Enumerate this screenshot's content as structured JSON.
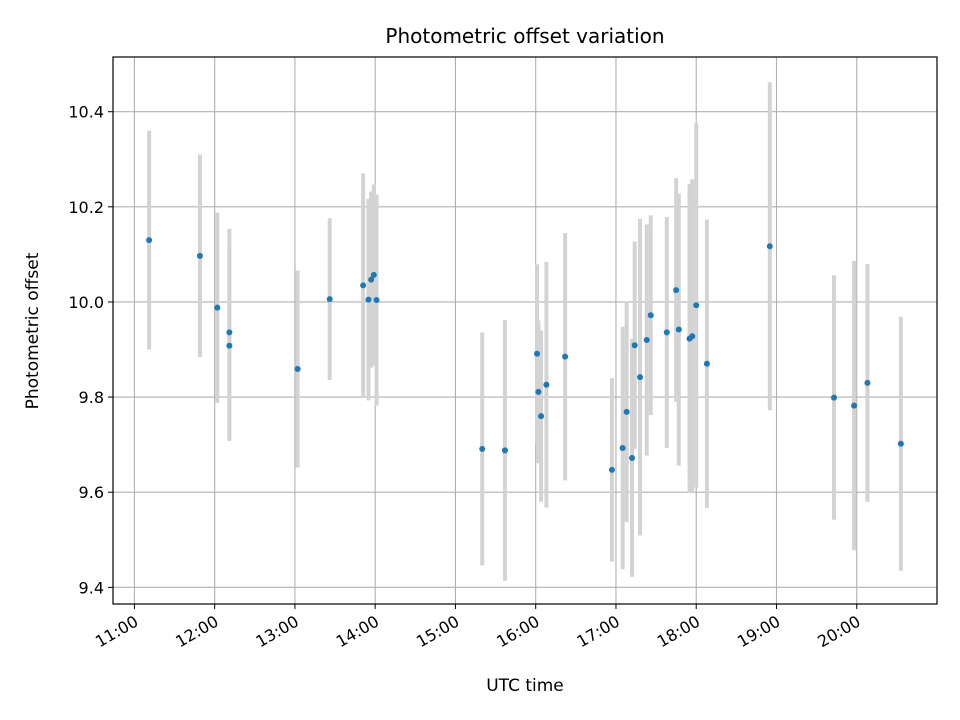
{
  "chart_data": {
    "type": "scatter",
    "title": "Photometric offset variation",
    "xlabel": "UTC time",
    "ylabel": "Photometric offset",
    "x_ticks": [
      "11:00",
      "12:00",
      "13:00",
      "14:00",
      "15:00",
      "16:00",
      "17:00",
      "18:00",
      "19:00",
      "20:00"
    ],
    "y_ticks": [
      "9.4",
      "9.6",
      "9.8",
      "10.0",
      "10.2",
      "10.4"
    ],
    "y_tick_values": [
      9.4,
      9.6,
      9.8,
      10.0,
      10.2,
      10.4
    ],
    "xlim": [
      "10:44",
      "21:00"
    ],
    "ylim": [
      9.365,
      10.515
    ],
    "grid": true,
    "point_color": "#1f77b4",
    "errorbar_color": "#d3d3d3",
    "points": [
      {
        "x": "11:11",
        "y": 10.13,
        "err": 0.23
      },
      {
        "x": "11:49",
        "y": 10.097,
        "err": 0.213
      },
      {
        "x": "12:02",
        "y": 9.988,
        "err": 0.2
      },
      {
        "x": "12:11",
        "y": 9.936,
        "err": 0.218
      },
      {
        "x": "12:11",
        "y": 9.908,
        "err": 0.2
      },
      {
        "x": "13:02",
        "y": 9.859,
        "err": 0.207
      },
      {
        "x": "13:26",
        "y": 10.006,
        "err": 0.17
      },
      {
        "x": "13:51",
        "y": 10.035,
        "err": 0.235
      },
      {
        "x": "13:55",
        "y": 10.005,
        "err": 0.212
      },
      {
        "x": "13:57",
        "y": 10.047,
        "err": 0.185
      },
      {
        "x": "13:59",
        "y": 10.057,
        "err": 0.19
      },
      {
        "x": "14:01",
        "y": 10.004,
        "err": 0.222
      },
      {
        "x": "15:20",
        "y": 9.691,
        "err": 0.245
      },
      {
        "x": "15:37",
        "y": 9.688,
        "err": 0.274
      },
      {
        "x": "16:01",
        "y": 9.891,
        "err": 0.188
      },
      {
        "x": "16:02",
        "y": 9.811,
        "err": 0.15
      },
      {
        "x": "16:04",
        "y": 9.76,
        "err": 0.18
      },
      {
        "x": "16:08",
        "y": 9.826,
        "err": 0.258
      },
      {
        "x": "16:22",
        "y": 9.885,
        "err": 0.26
      },
      {
        "x": "16:57",
        "y": 9.647,
        "err": 0.193
      },
      {
        "x": "17:05",
        "y": 9.693,
        "err": 0.255
      },
      {
        "x": "17:08",
        "y": 9.769,
        "err": 0.232
      },
      {
        "x": "17:12",
        "y": 9.672,
        "err": 0.25
      },
      {
        "x": "17:14",
        "y": 9.909,
        "err": 0.218
      },
      {
        "x": "17:18",
        "y": 9.842,
        "err": 0.333
      },
      {
        "x": "17:23",
        "y": 9.92,
        "err": 0.243
      },
      {
        "x": "17:26",
        "y": 9.972,
        "err": 0.21
      },
      {
        "x": "17:38",
        "y": 9.936,
        "err": 0.243
      },
      {
        "x": "17:45",
        "y": 10.025,
        "err": 0.235
      },
      {
        "x": "17:47",
        "y": 9.942,
        "err": 0.286
      },
      {
        "x": "17:55",
        "y": 9.923,
        "err": 0.325
      },
      {
        "x": "17:57",
        "y": 9.928,
        "err": 0.33
      },
      {
        "x": "18:00",
        "y": 9.993,
        "err": 0.383
      },
      {
        "x": "18:08",
        "y": 9.87,
        "err": 0.303
      },
      {
        "x": "18:55",
        "y": 10.117,
        "err": 0.345
      },
      {
        "x": "19:43",
        "y": 9.799,
        "err": 0.257
      },
      {
        "x": "19:58",
        "y": 9.782,
        "err": 0.304
      },
      {
        "x": "20:08",
        "y": 9.83,
        "err": 0.25
      },
      {
        "x": "20:33",
        "y": 9.702,
        "err": 0.267
      }
    ]
  }
}
